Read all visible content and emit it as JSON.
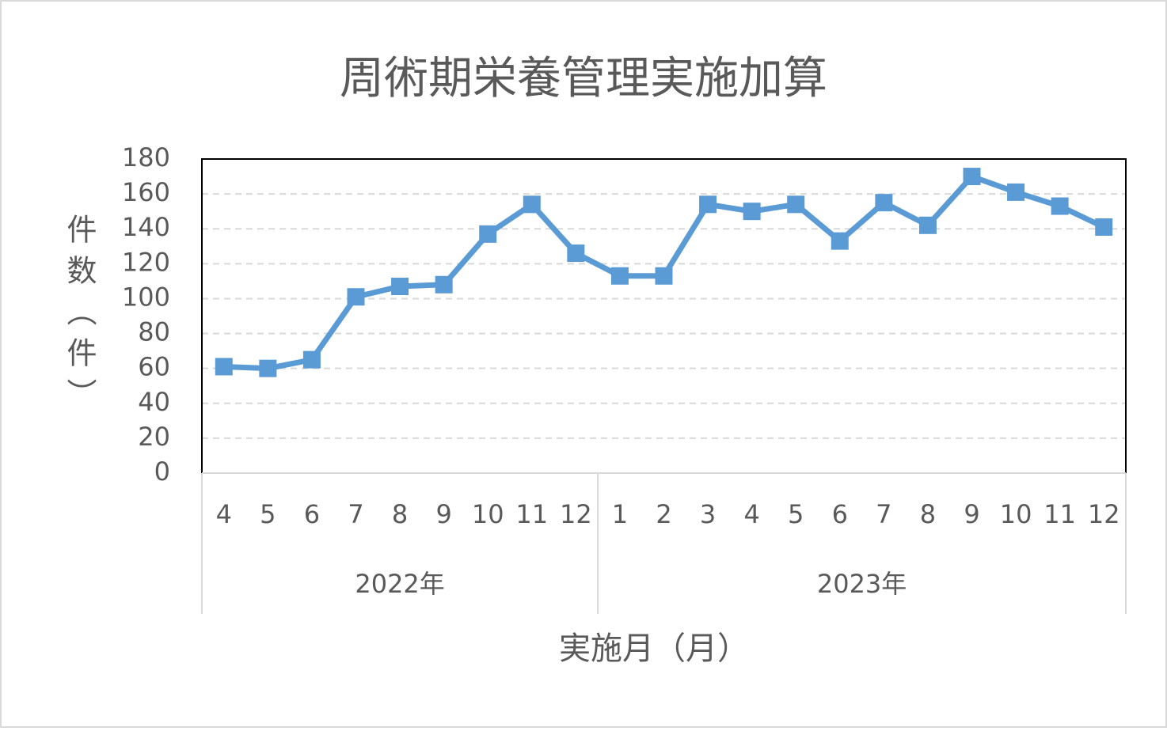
{
  "chart_data": {
    "type": "line",
    "title": "周術期栄養管理実施加算",
    "y_label": "件数（件）",
    "x_label": "実施月（月）",
    "category_groups": [
      {
        "name": "2022年",
        "categories": [
          "4",
          "5",
          "6",
          "7",
          "8",
          "9",
          "10",
          "11",
          "12"
        ]
      },
      {
        "name": "2023年",
        "categories": [
          "1",
          "2",
          "3",
          "4",
          "5",
          "6",
          "7",
          "8",
          "9",
          "10",
          "11",
          "12"
        ]
      }
    ],
    "series": [
      {
        "color": "#5b9bd5",
        "values": [
          61,
          60,
          65,
          101,
          107,
          108,
          137,
          154,
          126,
          113,
          113,
          154,
          150,
          154,
          133,
          155,
          142,
          170,
          161,
          153,
          141
        ]
      }
    ],
    "ylim": [
      0,
      180
    ],
    "yticks": [
      0,
      20,
      40,
      60,
      80,
      100,
      120,
      140,
      160,
      180
    ],
    "grid": true
  }
}
